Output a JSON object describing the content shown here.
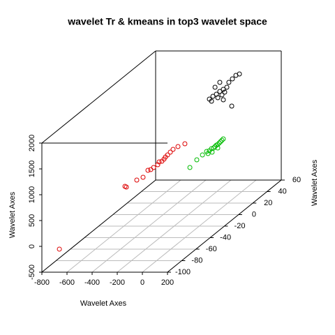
{
  "chart_data": {
    "type": "scatter3d",
    "title": "wavelet Tr & kmeans in top3 wavelet space",
    "xlabel": "Wavelet Axes",
    "ylabel": "Wavelet Axes",
    "zlabel": "Wavelet Axes",
    "xlim": [
      -800,
      200
    ],
    "ylim": [
      -100,
      60
    ],
    "zlim": [
      -500,
      2000
    ],
    "xticks": [
      -800,
      -600,
      -400,
      -200,
      0,
      200
    ],
    "yticks": [
      -100,
      -80,
      -60,
      -40,
      -20,
      0,
      20,
      40,
      60
    ],
    "zticks": [
      -500,
      0,
      500,
      1000,
      1500,
      2000
    ],
    "grid": true,
    "series": [
      {
        "color": "#dd0000",
        "x": [
          -689,
          -365,
          -354,
          -271,
          -221,
          -182,
          -160,
          -137,
          -104,
          -93,
          -71,
          -54,
          -43,
          -26,
          -4,
          18,
          57,
          112
        ],
        "y": [
          -95,
          -60,
          -60,
          -60,
          -60,
          -60,
          -60,
          -60,
          -60,
          -60,
          -60,
          -60,
          -60,
          -60,
          -60,
          -60,
          -60,
          -60
        ],
        "z": [
          -109,
          716,
          703,
          838,
          892,
          1027,
          1041,
          1081,
          1135,
          1189,
          1203,
          1243,
          1284,
          1324,
          1378,
          1432,
          1486,
          1541
        ]
      },
      {
        "color": "#00bb00",
        "x": [
          -301,
          -246,
          -201,
          -168,
          -146,
          -129,
          -112,
          -101,
          -90,
          -79,
          -68,
          -57,
          -46,
          -35,
          -79,
          -124,
          -157
        ],
        "y": [
          20,
          20,
          20,
          20,
          20,
          20,
          20,
          20,
          20,
          20,
          20,
          20,
          20,
          20,
          20,
          20,
          20
        ],
        "z": [
          189,
          338,
          432,
          500,
          514,
          554,
          568,
          595,
          622,
          635,
          662,
          689,
          716,
          743,
          568,
          486,
          459
        ]
      },
      {
        "color": "#000000",
        "x": [
          -259,
          -231,
          -203,
          -176,
          -148,
          -120,
          -192,
          -159,
          -137,
          -104,
          -76,
          -48,
          -20,
          -214,
          -176,
          -148,
          -81,
          -242
        ],
        "y": [
          40,
          40,
          40,
          40,
          40,
          40,
          40,
          40,
          40,
          40,
          40,
          40,
          40,
          40,
          40,
          40,
          40,
          40
        ],
        "z": [
          1291,
          1345,
          1385,
          1439,
          1480,
          1520,
          1318,
          1372,
          1426,
          1615,
          1682,
          1750,
          1777,
          1520,
          1615,
          1277,
          1155,
          1250
        ]
      }
    ]
  }
}
